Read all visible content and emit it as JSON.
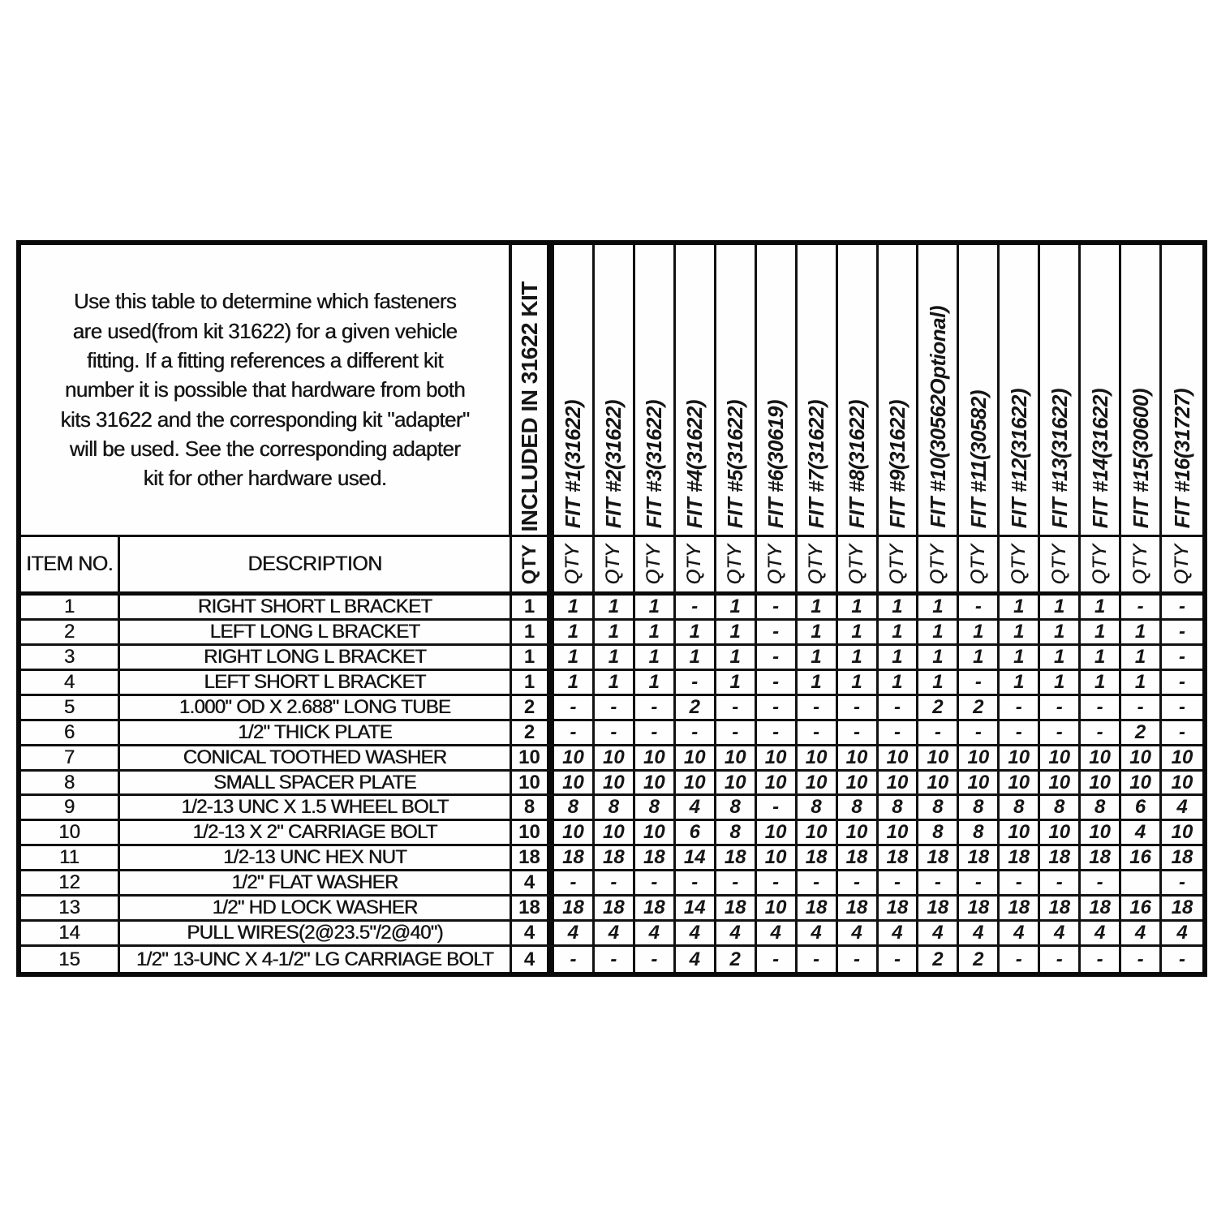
{
  "intro_text": "Use this table to determine which fasteners\nare used(from kit 31622) for a given vehicle\nfitting.  If a fitting references a different kit\nnumber it is possible that hardware from both\nkits 31622 and the corresponding kit \"adapter\"\nwill be used.  See the corresponding adapter\nkit for other hardware used.",
  "table": {
    "item_no_header": "ITEM NO.",
    "description_header": "DESCRIPTION",
    "kit_column_header": "INCLUDED IN 31622 KIT",
    "qty_label": "QTY",
    "fit_columns": [
      "FIT #1(31622)",
      "FIT #2(31622)",
      "FIT #3(31622)",
      "FIT #4(31622)",
      "FIT #5(31622)",
      "FIT #6(30619)",
      "FIT #7(31622)",
      "FIT #8(31622)",
      "FIT #9(31622)",
      "FIT #10(30562Optional)",
      "FIT #11(30582)",
      "FIT #12(31622)",
      "FIT #13(31622)",
      "FIT #14(31622)",
      "FIT #15(30600)",
      "FIT #16(31727)"
    ],
    "rows": [
      {
        "item": "1",
        "description": "RIGHT SHORT L BRACKET",
        "kit_qty": "1",
        "fit_qtys": [
          "1",
          "1",
          "1",
          "-",
          "1",
          "-",
          "1",
          "1",
          "1",
          "1",
          "-",
          "1",
          "1",
          "1",
          "-",
          "-"
        ]
      },
      {
        "item": "2",
        "description": "LEFT LONG L BRACKET",
        "kit_qty": "1",
        "fit_qtys": [
          "1",
          "1",
          "1",
          "1",
          "1",
          "-",
          "1",
          "1",
          "1",
          "1",
          "1",
          "1",
          "1",
          "1",
          "1",
          "-"
        ]
      },
      {
        "item": "3",
        "description": "RIGHT LONG L BRACKET",
        "kit_qty": "1",
        "fit_qtys": [
          "1",
          "1",
          "1",
          "1",
          "1",
          "-",
          "1",
          "1",
          "1",
          "1",
          "1",
          "1",
          "1",
          "1",
          "1",
          "-"
        ]
      },
      {
        "item": "4",
        "description": "LEFT SHORT L BRACKET",
        "kit_qty": "1",
        "fit_qtys": [
          "1",
          "1",
          "1",
          "-",
          "1",
          "-",
          "1",
          "1",
          "1",
          "1",
          "-",
          "1",
          "1",
          "1",
          "1",
          "-"
        ]
      },
      {
        "item": "5",
        "description": "1.000\" OD X 2.688\" LONG TUBE",
        "kit_qty": "2",
        "fit_qtys": [
          "-",
          "-",
          "-",
          "2",
          "-",
          "-",
          "-",
          "-",
          "-",
          "2",
          "2",
          "-",
          "-",
          "-",
          "-",
          "-"
        ]
      },
      {
        "item": "6",
        "description": "1/2\" THICK PLATE",
        "kit_qty": "2",
        "fit_qtys": [
          "-",
          "-",
          "-",
          "-",
          "-",
          "-",
          "-",
          "-",
          "-",
          "-",
          "-",
          "-",
          "-",
          "-",
          "2",
          "-"
        ]
      },
      {
        "item": "7",
        "description": "CONICAL TOOTHED WASHER",
        "kit_qty": "10",
        "fit_qtys": [
          "10",
          "10",
          "10",
          "10",
          "10",
          "10",
          "10",
          "10",
          "10",
          "10",
          "10",
          "10",
          "10",
          "10",
          "10",
          "10"
        ]
      },
      {
        "item": "8",
        "description": "SMALL SPACER PLATE",
        "kit_qty": "10",
        "fit_qtys": [
          "10",
          "10",
          "10",
          "10",
          "10",
          "10",
          "10",
          "10",
          "10",
          "10",
          "10",
          "10",
          "10",
          "10",
          "10",
          "10"
        ]
      },
      {
        "item": "9",
        "description": "1/2-13 UNC X 1.5 WHEEL BOLT",
        "kit_qty": "8",
        "fit_qtys": [
          "8",
          "8",
          "8",
          "4",
          "8",
          "-",
          "8",
          "8",
          "8",
          "8",
          "8",
          "8",
          "8",
          "8",
          "6",
          "4"
        ]
      },
      {
        "item": "10",
        "description": "1/2-13 X 2\" CARRIAGE BOLT",
        "kit_qty": "10",
        "fit_qtys": [
          "10",
          "10",
          "10",
          "6",
          "8",
          "10",
          "10",
          "10",
          "10",
          "8",
          "8",
          "10",
          "10",
          "10",
          "4",
          "10"
        ]
      },
      {
        "item": "11",
        "description": "1/2-13 UNC HEX NUT",
        "kit_qty": "18",
        "fit_qtys": [
          "18",
          "18",
          "18",
          "14",
          "18",
          "10",
          "18",
          "18",
          "18",
          "18",
          "18",
          "18",
          "18",
          "18",
          "16",
          "18"
        ]
      },
      {
        "item": "12",
        "description": "1/2\" FLAT WASHER",
        "kit_qty": "4",
        "fit_qtys": [
          "-",
          "-",
          "-",
          "-",
          "-",
          "-",
          "-",
          "-",
          "-",
          "-",
          "-",
          "-",
          "-",
          "-",
          "",
          "-"
        ]
      },
      {
        "item": "13",
        "description": "1/2\" HD LOCK WASHER",
        "kit_qty": "18",
        "fit_qtys": [
          "18",
          "18",
          "18",
          "14",
          "18",
          "10",
          "18",
          "18",
          "18",
          "18",
          "18",
          "18",
          "18",
          "18",
          "16",
          "18"
        ]
      },
      {
        "item": "14",
        "description": "PULL WIRES(2@23.5\"/2@40\")",
        "kit_qty": "4",
        "fit_qtys": [
          "4",
          "4",
          "4",
          "4",
          "4",
          "4",
          "4",
          "4",
          "4",
          "4",
          "4",
          "4",
          "4",
          "4",
          "4",
          "4"
        ]
      },
      {
        "item": "15",
        "description": "1/2\" 13-UNC X 4-1/2\" LG CARRIAGE BOLT",
        "kit_qty": "4",
        "fit_qtys": [
          "-",
          "-",
          "-",
          "4",
          "2",
          "-",
          "-",
          "-",
          "-",
          "2",
          "2",
          "-",
          "-",
          "-",
          "-",
          "-"
        ]
      }
    ]
  }
}
